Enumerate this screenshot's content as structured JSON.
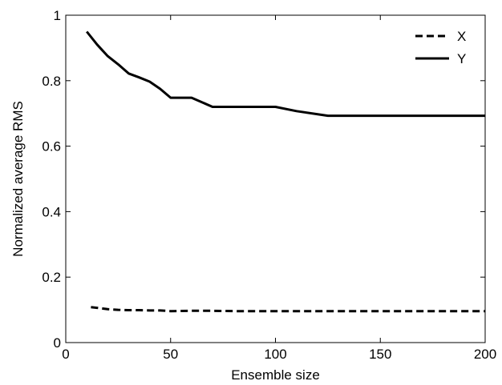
{
  "chart_data": {
    "type": "line",
    "title": "",
    "xlabel": "Ensemble size",
    "ylabel": "Normalized average RMS",
    "xlim": [
      0,
      200
    ],
    "ylim": [
      0,
      1
    ],
    "xticks": [
      0,
      50,
      100,
      150,
      200
    ],
    "yticks": [
      0,
      0.2,
      0.4,
      0.6,
      0.8,
      1
    ],
    "xtick_labels": [
      "0",
      "50",
      "100",
      "150",
      "200"
    ],
    "ytick_labels": [
      "0",
      "0.2",
      "0.4",
      "0.6",
      "0.8",
      "1"
    ],
    "grid": false,
    "legend_position": "top-right",
    "series": [
      {
        "name": "X",
        "line_style": "dashed",
        "color": "#000000",
        "x": [
          12,
          15,
          20,
          25,
          30,
          35,
          40,
          45,
          50,
          60,
          70,
          80,
          90,
          100,
          125,
          150,
          175,
          200
        ],
        "y": [
          0.108,
          0.106,
          0.102,
          0.1,
          0.099,
          0.099,
          0.098,
          0.098,
          0.096,
          0.097,
          0.097,
          0.096,
          0.096,
          0.096,
          0.096,
          0.096,
          0.096,
          0.096
        ]
      },
      {
        "name": "Y",
        "line_style": "solid",
        "color": "#000000",
        "x": [
          10,
          15,
          20,
          25,
          30,
          35,
          40,
          45,
          50,
          55,
          60,
          70,
          80,
          90,
          100,
          110,
          125,
          150,
          175,
          200
        ],
        "y": [
          0.95,
          0.91,
          0.875,
          0.85,
          0.822,
          0.81,
          0.797,
          0.775,
          0.748,
          0.748,
          0.748,
          0.72,
          0.72,
          0.72,
          0.72,
          0.707,
          0.693,
          0.693,
          0.693,
          0.693
        ]
      }
    ]
  }
}
